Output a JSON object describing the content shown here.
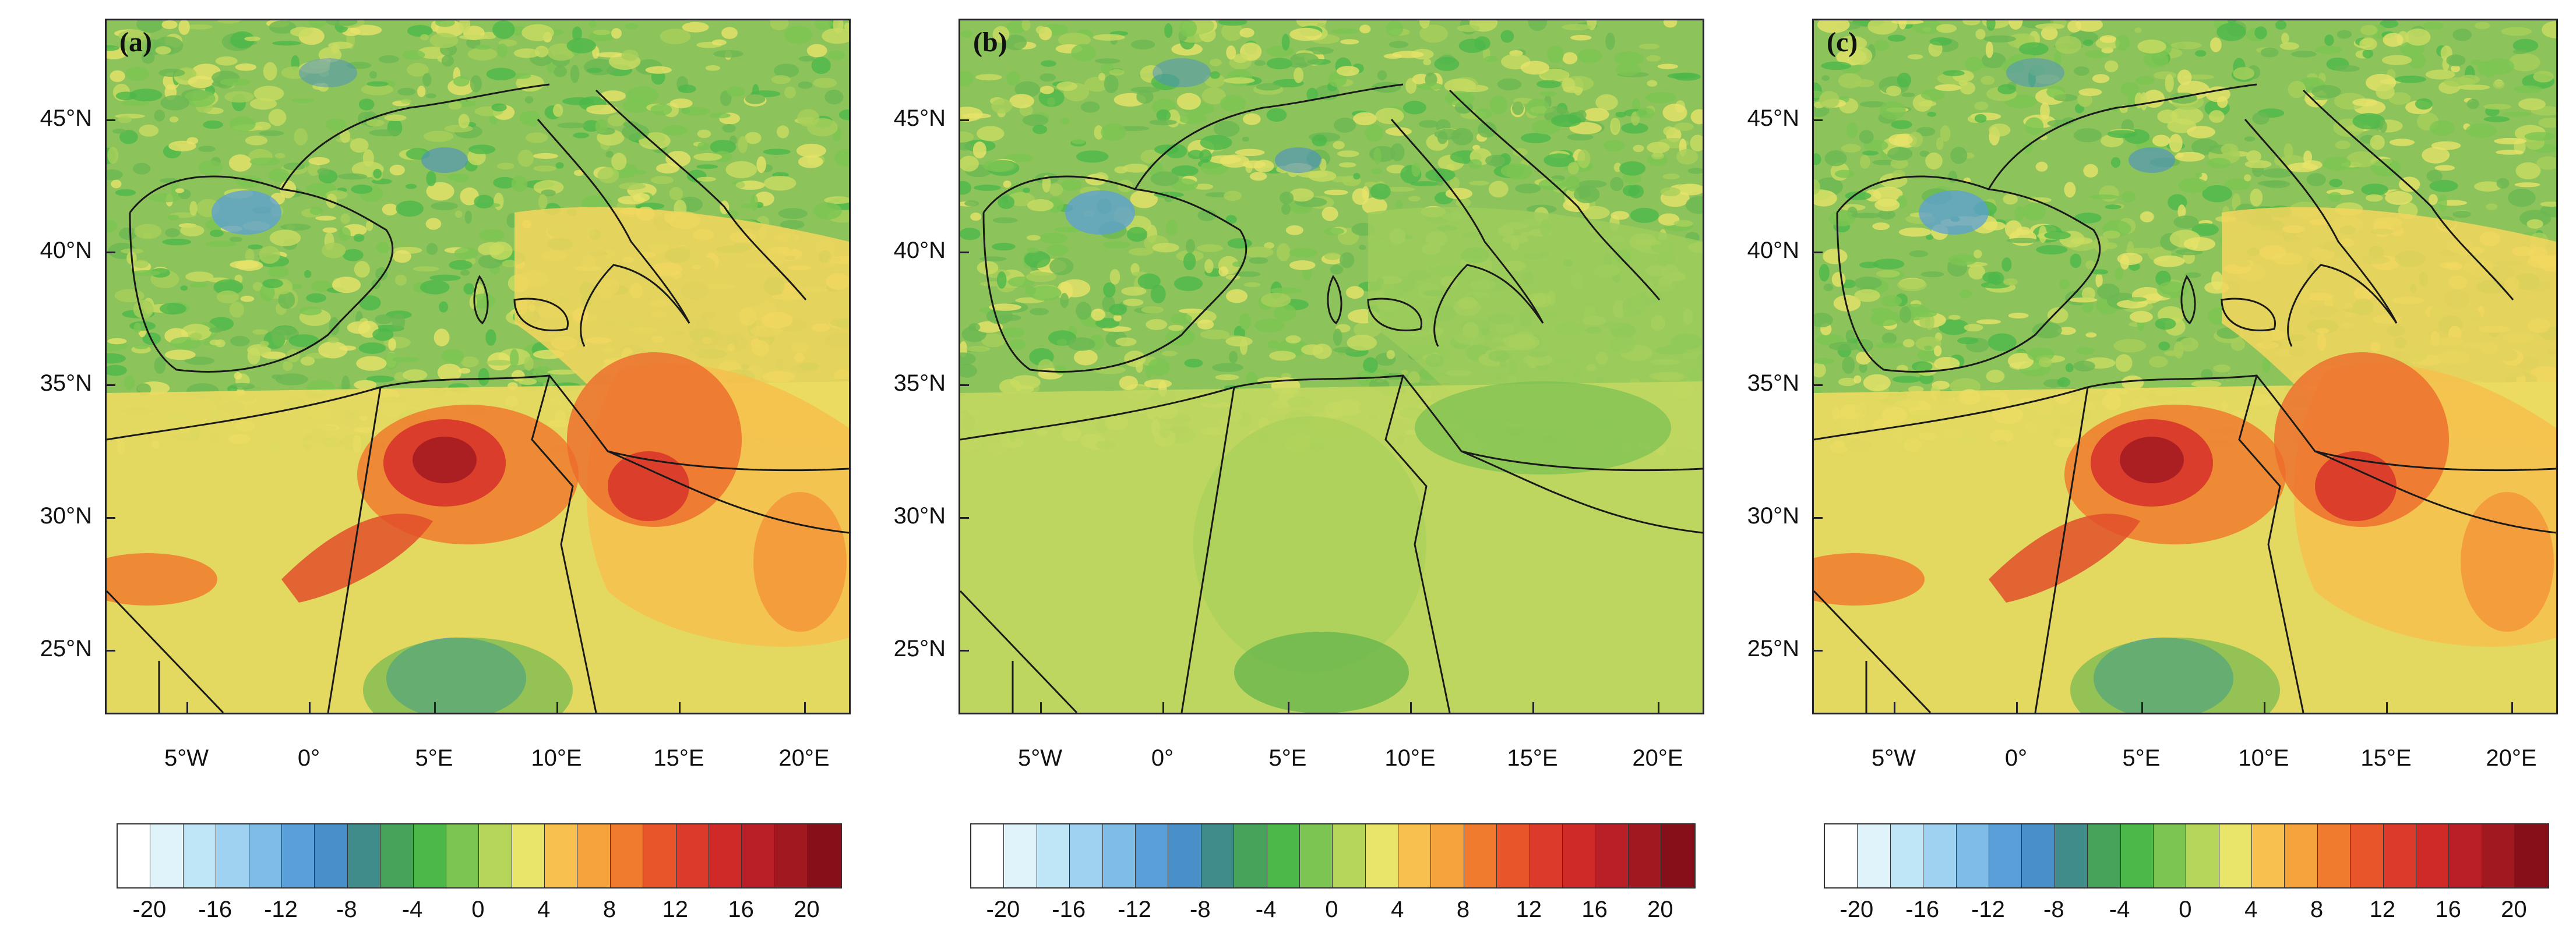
{
  "figure": {
    "panels": [
      {
        "id": "a",
        "label": "(a)",
        "variant": "strong"
      },
      {
        "id": "b",
        "label": "(b)",
        "variant": "weak"
      },
      {
        "id": "c",
        "label": "(c)",
        "variant": "strong"
      }
    ],
    "lat_ticks": [
      "45°N",
      "40°N",
      "35°N",
      "30°N",
      "25°N"
    ],
    "lon_ticks": [
      "5°W",
      "0°",
      "5°E",
      "10°E",
      "15°E",
      "20°E"
    ],
    "colorbar": {
      "colors": [
        "#ffffff",
        "#e0f3fb",
        "#bfe6f7",
        "#9fd2f0",
        "#7fbde6",
        "#5b9fd8",
        "#4a90c8",
        "#3f8c8a",
        "#47a35a",
        "#4cb84a",
        "#7cc552",
        "#b5d65a",
        "#e9e46a",
        "#f7c04f",
        "#f5a33c",
        "#f07a2e",
        "#e8552a",
        "#dc3a2a",
        "#cf2a28",
        "#b91f26",
        "#a01820",
        "#85101a"
      ],
      "tick_labels": [
        "-20",
        "-16",
        "-12",
        "-8",
        "-4",
        "0",
        "4",
        "8",
        "12",
        "16",
        "20"
      ]
    }
  }
}
